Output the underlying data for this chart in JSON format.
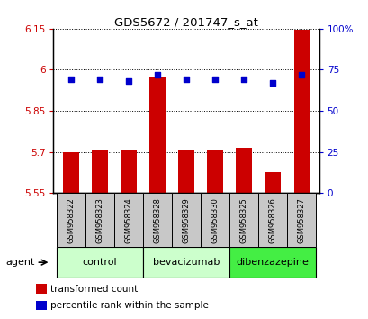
{
  "title": "GDS5672 / 201747_s_at",
  "samples": [
    "GSM958322",
    "GSM958323",
    "GSM958324",
    "GSM958328",
    "GSM958329",
    "GSM958330",
    "GSM958325",
    "GSM958326",
    "GSM958327"
  ],
  "bar_values": [
    5.7,
    5.71,
    5.71,
    5.975,
    5.71,
    5.71,
    5.715,
    5.625,
    6.145
  ],
  "percentile_values": [
    69,
    69,
    68,
    72,
    69,
    69,
    69,
    67,
    72
  ],
  "ylim": [
    5.55,
    6.15
  ],
  "yticks": [
    5.55,
    5.7,
    5.85,
    6.0,
    6.15
  ],
  "ytick_labels": [
    "5.55",
    "5.7",
    "5.85",
    "6",
    "6.15"
  ],
  "right_yticks": [
    0,
    25,
    50,
    75,
    100
  ],
  "right_ytick_labels": [
    "0",
    "25",
    "50",
    "75",
    "100%"
  ],
  "bar_color": "#cc0000",
  "dot_color": "#0000cc",
  "groups": [
    {
      "label": "control",
      "start": 0,
      "end": 3,
      "color": "#ccffcc"
    },
    {
      "label": "bevacizumab",
      "start": 3,
      "end": 6,
      "color": "#ccffcc"
    },
    {
      "label": "dibenzazepine",
      "start": 6,
      "end": 9,
      "color": "#44ee44"
    }
  ],
  "agent_label": "agent",
  "legend_items": [
    {
      "label": "transformed count",
      "color": "#cc0000"
    },
    {
      "label": "percentile rank within the sample",
      "color": "#0000cc"
    }
  ],
  "bar_width": 0.55,
  "ybase": 5.55,
  "grid_color": "#000000",
  "bg_color": "#ffffff"
}
